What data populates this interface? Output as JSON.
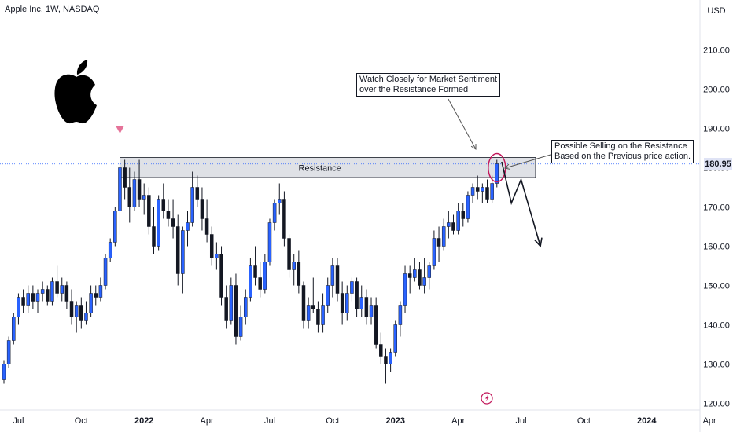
{
  "header": {
    "ticker": "Apple Inc, 1W, NASDAQ"
  },
  "currency": "USD",
  "colors": {
    "up": "#2962ff",
    "down": "#131722",
    "resistance_fill": "#d1d4dc",
    "price_line": "#2962ff",
    "marker": "#e57399",
    "circle": "#c2185b"
  },
  "logo": {
    "icon": "apple-logo-icon"
  },
  "annotations": {
    "resistance_label": "Resistance",
    "note_sentiment": [
      "Watch Closely for Market Sentiment",
      "over the Resistance Formed"
    ],
    "note_selling": [
      "Possible Selling on the Resistance",
      "Based on the Previous price action."
    ]
  },
  "chart_data": {
    "type": "candlestick",
    "title": "Apple Inc, 1W, NASDAQ",
    "y_axis_label": "USD",
    "ylim": [
      118,
      223
    ],
    "y_ticks": [
      120,
      130,
      140,
      150,
      160,
      170,
      180,
      190,
      200,
      210
    ],
    "y_tick_labels": [
      "120.00",
      "130.00",
      "140.00",
      "150.00",
      "160.00",
      "170.00",
      "180.00",
      "190.00",
      "200.00",
      "210.00"
    ],
    "x_ticks": [
      {
        "label": "Jul",
        "week": 3
      },
      {
        "label": "Oct",
        "week": 16
      },
      {
        "label": "2022",
        "week": 29
      },
      {
        "label": "Apr",
        "week": 42
      },
      {
        "label": "Jul",
        "week": 55
      },
      {
        "label": "Oct",
        "week": 68
      },
      {
        "label": "2023",
        "week": 81
      },
      {
        "label": "Apr",
        "week": 94
      },
      {
        "label": "Jul",
        "week": 107
      },
      {
        "label": "Oct",
        "week": 120
      },
      {
        "label": "2024",
        "week": 133
      },
      {
        "label": "Apr",
        "week": 146
      }
    ],
    "last_price": 180.95,
    "last_price_label": "180.95",
    "resistance_zone": {
      "low": 177.5,
      "high": 182.6,
      "start_week": 24,
      "end_week": 110
    },
    "projection_path": [
      [
        103,
        181.5
      ],
      [
        105,
        171
      ],
      [
        107,
        177
      ],
      [
        111,
        160
      ]
    ],
    "candles": [
      [
        0,
        126,
        131,
        125,
        130
      ],
      [
        1,
        130,
        137,
        129,
        136
      ],
      [
        2,
        136,
        143,
        135,
        142
      ],
      [
        3,
        142,
        148,
        140,
        147
      ],
      [
        4,
        147,
        149,
        143,
        145
      ],
      [
        5,
        145,
        150,
        143,
        148
      ],
      [
        6,
        148,
        150,
        144,
        146
      ],
      [
        7,
        146,
        149,
        143,
        148
      ],
      [
        8,
        148,
        151,
        146,
        149
      ],
      [
        9,
        149,
        150,
        145,
        146
      ],
      [
        10,
        146,
        152,
        145,
        151
      ],
      [
        11,
        151,
        155,
        147,
        148
      ],
      [
        12,
        148,
        152,
        146,
        150
      ],
      [
        13,
        150,
        151,
        144,
        146
      ],
      [
        14,
        146,
        149,
        140,
        142
      ],
      [
        15,
        142,
        146,
        138,
        145
      ],
      [
        16,
        145,
        147,
        139,
        141
      ],
      [
        17,
        141,
        146,
        140,
        143
      ],
      [
        18,
        143,
        150,
        142,
        148
      ],
      [
        19,
        148,
        150,
        145,
        147
      ],
      [
        20,
        147,
        152,
        146,
        150
      ],
      [
        21,
        150,
        158,
        149,
        157
      ],
      [
        22,
        157,
        162,
        156,
        161
      ],
      [
        23,
        161,
        170,
        160,
        169
      ],
      [
        24,
        169,
        181,
        163,
        180
      ],
      [
        25,
        180,
        182,
        172,
        175
      ],
      [
        26,
        175,
        180,
        166,
        170
      ],
      [
        27,
        170,
        179,
        169,
        177
      ],
      [
        28,
        177,
        182,
        170,
        172
      ],
      [
        29,
        172,
        176,
        168,
        173
      ],
      [
        30,
        173,
        175,
        163,
        165
      ],
      [
        31,
        165,
        170,
        158,
        160
      ],
      [
        32,
        160,
        173,
        159,
        172
      ],
      [
        33,
        172,
        176,
        167,
        169
      ],
      [
        34,
        169,
        172,
        165,
        167
      ],
      [
        35,
        167,
        172,
        162,
        165
      ],
      [
        36,
        165,
        168,
        150,
        153
      ],
      [
        37,
        153,
        165,
        148,
        164
      ],
      [
        38,
        164,
        169,
        160,
        166
      ],
      [
        39,
        166,
        179,
        165,
        175
      ],
      [
        40,
        175,
        178,
        170,
        172
      ],
      [
        41,
        172,
        175,
        164,
        167
      ],
      [
        42,
        167,
        172,
        161,
        163
      ],
      [
        43,
        163,
        165,
        155,
        157
      ],
      [
        44,
        157,
        161,
        154,
        158
      ],
      [
        45,
        158,
        160,
        145,
        147
      ],
      [
        46,
        147,
        150,
        139,
        141
      ],
      [
        47,
        141,
        152,
        140,
        150
      ],
      [
        48,
        150,
        153,
        135,
        137
      ],
      [
        49,
        137,
        145,
        136,
        142
      ],
      [
        50,
        142,
        149,
        140,
        147
      ],
      [
        51,
        147,
        157,
        146,
        155
      ],
      [
        52,
        155,
        160,
        150,
        152
      ],
      [
        53,
        152,
        156,
        147,
        149
      ],
      [
        54,
        149,
        158,
        148,
        156
      ],
      [
        55,
        156,
        167,
        155,
        166
      ],
      [
        56,
        166,
        172,
        164,
        171
      ],
      [
        57,
        171,
        176,
        168,
        172
      ],
      [
        58,
        172,
        174,
        160,
        162
      ],
      [
        59,
        162,
        163,
        152,
        154
      ],
      [
        60,
        154,
        158,
        150,
        156
      ],
      [
        61,
        156,
        159,
        148,
        150
      ],
      [
        62,
        150,
        151,
        139,
        141
      ],
      [
        63,
        141,
        147,
        139,
        145
      ],
      [
        64,
        145,
        152,
        143,
        144
      ],
      [
        65,
        144,
        146,
        138,
        140
      ],
      [
        66,
        140,
        148,
        138,
        145
      ],
      [
        67,
        145,
        152,
        143,
        150
      ],
      [
        68,
        150,
        157,
        147,
        155
      ],
      [
        69,
        155,
        157,
        146,
        148
      ],
      [
        70,
        148,
        151,
        140,
        143
      ],
      [
        71,
        143,
        150,
        141,
        148
      ],
      [
        72,
        148,
        152,
        146,
        151
      ],
      [
        73,
        151,
        152,
        142,
        144
      ],
      [
        74,
        144,
        150,
        142,
        147
      ],
      [
        75,
        147,
        149,
        140,
        142
      ],
      [
        76,
        142,
        147,
        140,
        145
      ],
      [
        77,
        145,
        147,
        134,
        135
      ],
      [
        78,
        135,
        138,
        130,
        132
      ],
      [
        79,
        132,
        134,
        125,
        130
      ],
      [
        80,
        130,
        134,
        128,
        133
      ],
      [
        81,
        133,
        141,
        132,
        140
      ],
      [
        82,
        140,
        146,
        137,
        145
      ],
      [
        83,
        145,
        155,
        143,
        153
      ],
      [
        84,
        153,
        155,
        148,
        152
      ],
      [
        85,
        152,
        157,
        151,
        154
      ],
      [
        86,
        154,
        156,
        149,
        150
      ],
      [
        87,
        150,
        157,
        148,
        152
      ],
      [
        88,
        152,
        156,
        149,
        155
      ],
      [
        89,
        155,
        164,
        154,
        162
      ],
      [
        90,
        162,
        165,
        156,
        160
      ],
      [
        91,
        160,
        167,
        159,
        165
      ],
      [
        92,
        165,
        169,
        162,
        166
      ],
      [
        93,
        166,
        168,
        163,
        164
      ],
      [
        94,
        164,
        171,
        163,
        169
      ],
      [
        95,
        169,
        171,
        165,
        167
      ],
      [
        96,
        167,
        174,
        166,
        173
      ],
      [
        97,
        173,
        176,
        171,
        175
      ],
      [
        98,
        175,
        178,
        172,
        174
      ],
      [
        99,
        174,
        176,
        171,
        175
      ],
      [
        100,
        175,
        177,
        171,
        172
      ],
      [
        101,
        172,
        178,
        171,
        176
      ],
      [
        102,
        176,
        182,
        175,
        181
      ]
    ]
  }
}
